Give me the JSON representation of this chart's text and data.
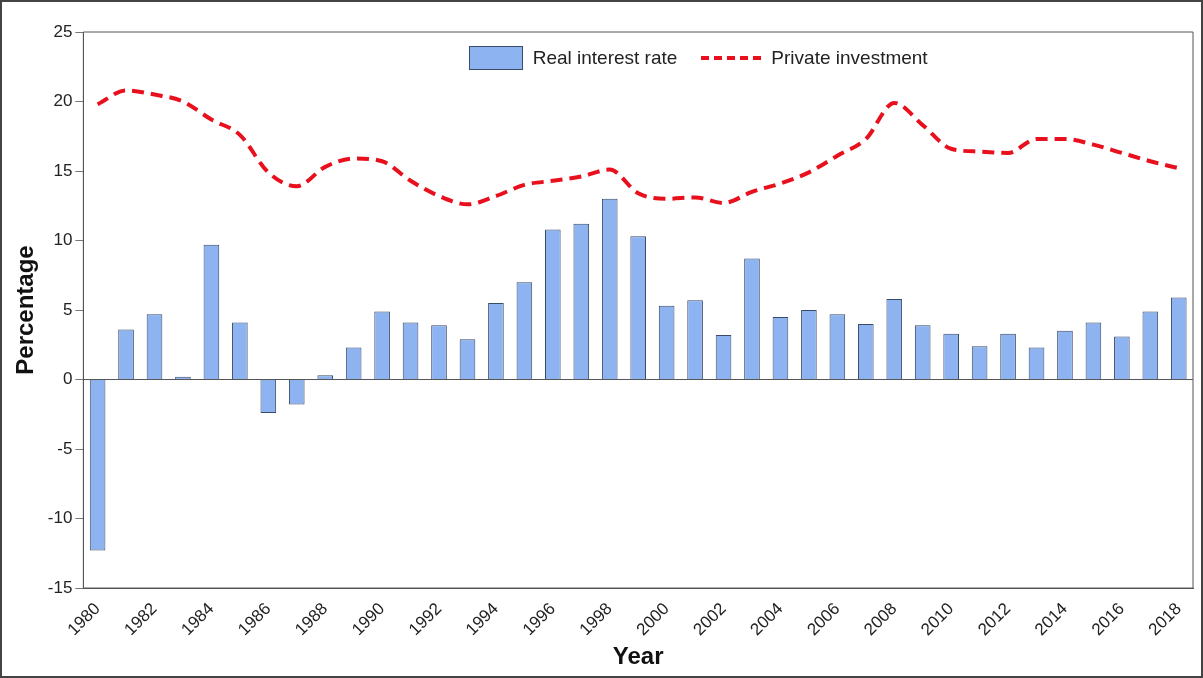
{
  "chart_data": {
    "type": "bar",
    "xlabel": "Year",
    "ylabel": "Percentage",
    "categories": [
      "1980",
      null,
      "1982",
      null,
      "1984",
      null,
      "1986",
      null,
      "1988",
      null,
      "1990",
      null,
      "1992",
      null,
      "1994",
      null,
      "1996",
      null,
      "1998",
      null,
      "2000",
      null,
      "2002",
      null,
      "2004",
      null,
      "2006",
      null,
      "2008",
      null,
      "2010",
      null,
      "2012",
      null,
      "2014",
      null,
      "2016",
      null,
      "2018"
    ],
    "series": [
      {
        "name": "Real interest rate",
        "color": "#8db4f0",
        "values": [
          -12.3,
          3.6,
          4.7,
          0.2,
          9.7,
          4.1,
          -2.4,
          -1.8,
          0.3,
          2.3,
          4.9,
          4.1,
          3.9,
          2.9,
          5.5,
          7.0,
          10.8,
          11.2,
          13.0,
          10.3,
          5.3,
          5.7,
          3.2,
          8.7,
          4.5,
          5.0,
          4.7,
          4.0,
          5.8,
          3.9,
          3.3,
          2.4,
          3.3,
          2.3,
          3.5,
          4.1,
          3.1,
          4.9,
          5.9
        ]
      },
      {
        "name": "Private investment",
        "type": "line",
        "color": "#e8101c",
        "line_style": "dashed",
        "marker": "none",
        "values": [
          19.8,
          20.8,
          20.5,
          20.0,
          18.7,
          17.6,
          14.9,
          13.9,
          15.3,
          15.9,
          15.7,
          14.3,
          13.2,
          12.6,
          13.2,
          14.0,
          14.3,
          14.6,
          15.1,
          13.4,
          13.0,
          13.1,
          12.7,
          13.5,
          14.1,
          14.9,
          16.1,
          17.3,
          19.9,
          18.3,
          16.6,
          16.4,
          16.3,
          17.3,
          17.3,
          16.9,
          16.3,
          15.7,
          15.2
        ]
      }
    ],
    "ylim": [
      -15,
      25
    ],
    "yticks": [
      -15,
      -10,
      -5,
      0,
      5,
      10,
      15,
      20,
      25
    ],
    "grid": false,
    "legend": "top",
    "ref_lines": [
      {
        "axis": "y",
        "value": 0,
        "color": "#555555"
      }
    ]
  }
}
